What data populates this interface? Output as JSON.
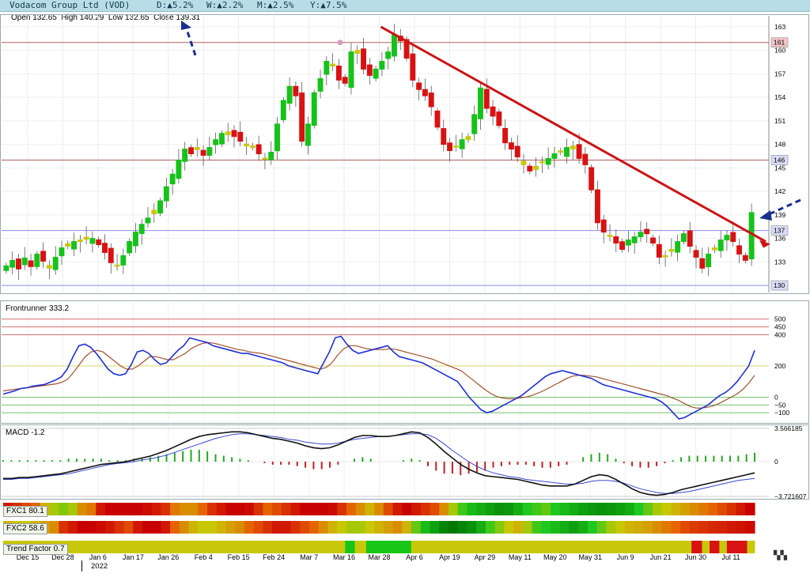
{
  "header": {
    "name": "Vodacom Group Ltd (VOD)",
    "day": "D:▲5.2%",
    "week": "W:▲2.2%",
    "month": "M:▲2.5%",
    "year": "Y:▲7.5%",
    "up_color": "#25a025"
  },
  "ohlc_text": "Open 132.65  High 140.29  Low 132.65  Close 139.31",
  "colors": {
    "up_candle": "#16c21a",
    "neutral_candle": "#c8c80a",
    "down_candle": "#d81212",
    "trendline": "#cc1414",
    "arrow": "#1a2f8e",
    "fast_line": "#1f2fd6",
    "slow_line": "#a0522d",
    "macd_line": "#111111",
    "signal_line": "#3848d0",
    "level_line": "#b06060",
    "level_line_blue": "#8c8ce6"
  },
  "chart_data": [
    {
      "type": "candlestick",
      "panel": "price",
      "ylim": [
        129,
        164
      ],
      "yticks": [
        130,
        133,
        136,
        139,
        142,
        145,
        148,
        151,
        154,
        157,
        160,
        163
      ],
      "xticks": [
        "Dec 15",
        "Dec 28",
        "Jan 6",
        "Jan 17",
        "Jan 26",
        "Feb 4",
        "Feb 15",
        "Feb 24",
        "Mar 7",
        "Mar 16",
        "Mar 28",
        "Apr 6",
        "Apr 19",
        "Apr 29",
        "May 11",
        "May 20",
        "May 31",
        "Jun 9",
        "Jun 21",
        "Jun 30",
        "Jul 11"
      ],
      "year_label": "2022",
      "reference_lines": [
        {
          "value": 161,
          "label": "161"
        },
        {
          "value": 146,
          "label": "146"
        },
        {
          "value": 137,
          "label": "137"
        },
        {
          "value": 130,
          "label": "130"
        }
      ],
      "close_series": [
        132.5,
        133.2,
        132.1,
        133.5,
        132.4,
        134.0,
        133.1,
        132.2,
        133.6,
        134.8,
        135.0,
        135.6,
        135.8,
        135.9,
        136.0,
        135.2,
        134.2,
        132.9,
        132.6,
        133.8,
        135.6,
        136.8,
        137.8,
        138.6,
        139.6,
        140.8,
        142.6,
        144.2,
        146.0,
        147.4,
        146.8,
        147.6,
        146.6,
        147.6,
        148.6,
        149.4,
        149.6,
        149.0,
        148.4,
        147.8,
        147.6,
        146.8,
        146.2,
        147.0,
        150.6,
        153.6,
        155.4,
        154.2,
        148.4,
        150.6,
        154.6,
        156.4,
        158.6,
        158.0,
        156.2,
        155.8,
        159.8,
        160.0,
        157.6,
        156.8,
        157.6,
        158.6,
        159.8,
        162.0,
        161.2,
        159.0,
        156.2,
        155.0,
        154.2,
        152.8,
        150.2,
        148.0,
        147.2,
        147.8,
        148.6,
        149.0,
        151.8,
        155.2,
        152.6,
        151.6,
        150.4,
        148.2,
        147.4,
        146.4,
        145.4,
        144.6,
        145.2,
        145.8,
        146.2,
        146.8,
        147.0,
        147.6,
        147.8,
        146.2,
        145.4,
        142.2,
        138.0,
        136.8,
        136.4,
        135.4,
        134.6,
        135.8,
        136.2,
        136.8,
        136.6,
        135.4,
        133.6,
        133.8,
        134.6,
        135.6,
        136.6,
        135.0,
        133.6,
        132.2,
        134.0,
        134.8,
        135.8,
        136.4,
        135.6,
        134.0,
        133.2,
        139.3
      ],
      "trendline": {
        "from": {
          "date": "Mar 28",
          "value": 163
        },
        "to": {
          "date": "Jul 11",
          "value": 135.6
        }
      },
      "arrow_marks": [
        "Open-High-Low-Close readout",
        "latest close"
      ]
    },
    {
      "type": "line",
      "panel": "oscillator",
      "title": "Frontrunner 333.2",
      "ylim": [
        -150,
        600
      ],
      "yticks": [
        500,
        450,
        400,
        200,
        0,
        -50,
        -100
      ],
      "tick_labels": [
        "500",
        "450",
        "400",
        "200",
        "0",
        "−50",
        "−100"
      ],
      "series": [
        {
          "values": [
            20,
            30,
            40,
            55,
            60,
            70,
            75,
            80,
            95,
            110,
            130,
            180,
            260,
            330,
            340,
            320,
            280,
            230,
            180,
            150,
            140,
            150,
            210,
            290,
            300,
            280,
            240,
            210,
            220,
            260,
            300,
            330,
            380,
            370,
            360,
            350,
            330,
            320,
            310,
            300,
            290,
            280,
            280,
            270,
            260,
            250,
            240,
            230,
            220,
            200,
            190,
            180,
            170,
            160,
            150,
            220,
            290,
            380,
            390,
            340,
            300,
            280,
            290,
            300,
            310,
            320,
            330,
            290,
            260,
            250,
            240,
            230,
            220,
            200,
            180,
            160,
            140,
            120,
            100,
            50,
            0,
            -40,
            -80,
            -100,
            -90,
            -70,
            -50,
            -30,
            -10,
            10,
            40,
            70,
            100,
            130,
            150,
            160,
            170,
            160,
            150,
            140,
            130,
            120,
            100,
            80,
            70,
            60,
            50,
            40,
            30,
            20,
            10,
            0,
            -10,
            -30,
            -60,
            -100,
            -140,
            -130,
            -110,
            -90,
            -70,
            -50,
            -20,
            10,
            30,
            60,
            100,
            150,
            200,
            300
          ]
        },
        {
          "values": [
            40,
            45,
            50,
            55,
            60,
            65,
            70,
            75,
            80,
            85,
            95,
            115,
            160,
            210,
            260,
            290,
            300,
            290,
            260,
            230,
            200,
            180,
            180,
            200,
            230,
            260,
            260,
            250,
            240,
            240,
            260,
            280,
            310,
            330,
            345,
            350,
            345,
            335,
            325,
            315,
            305,
            300,
            290,
            285,
            280,
            270,
            260,
            250,
            240,
            230,
            220,
            210,
            200,
            190,
            180,
            190,
            220,
            270,
            310,
            330,
            330,
            320,
            310,
            305,
            305,
            305,
            310,
            305,
            295,
            285,
            275,
            265,
            255,
            245,
            230,
            215,
            200,
            185,
            170,
            140,
            110,
            80,
            50,
            25,
            5,
            -5,
            -10,
            -10,
            -5,
            0,
            10,
            25,
            40,
            60,
            80,
            100,
            120,
            135,
            140,
            140,
            135,
            130,
            120,
            110,
            100,
            90,
            80,
            70,
            60,
            50,
            40,
            30,
            20,
            10,
            -5,
            -20,
            -40,
            -60,
            -70,
            -70,
            -65,
            -55,
            -40,
            -20,
            0,
            20,
            50,
            90,
            140
          ]
        }
      ]
    },
    {
      "type": "bar+line",
      "panel": "macd",
      "title": "MACD -1.2",
      "ylim": [
        -3.721607,
        3.566185
      ],
      "yticks": [
        3.566185,
        0,
        -3.721607
      ],
      "tick_labels": [
        "3.566185",
        "0",
        "−3.721607"
      ],
      "series": [
        {
          "values": [
            -1.8,
            -1.8,
            -1.7,
            -1.7,
            -1.6,
            -1.5,
            -1.4,
            -1.3,
            -1.1,
            -0.9,
            -0.7,
            -0.5,
            -0.3,
            -0.2,
            -0.1,
            0.0,
            0.2,
            0.4,
            0.6,
            0.9,
            1.2,
            1.6,
            2.0,
            2.4,
            2.7,
            2.9,
            3.0,
            3.1,
            3.2,
            3.2,
            3.1,
            2.9,
            2.7,
            2.5,
            2.4,
            2.2,
            2.0,
            1.7,
            1.5,
            1.4,
            1.5,
            1.8,
            2.2,
            2.6,
            2.8,
            2.8,
            2.7,
            2.7,
            2.8,
            3.0,
            3.2,
            3.1,
            2.6,
            1.9,
            1.1,
            0.4,
            -0.3,
            -0.8,
            -1.2,
            -1.5,
            -1.6,
            -1.7,
            -1.8,
            -1.9,
            -2.1,
            -2.3,
            -2.5,
            -2.6,
            -2.6,
            -2.6,
            -2.4,
            -2.0,
            -1.6,
            -1.4,
            -1.5,
            -1.9,
            -2.4,
            -2.9,
            -3.3,
            -3.5,
            -3.6,
            -3.5,
            -3.3,
            -3.0,
            -2.8,
            -2.6,
            -2.4,
            -2.2,
            -2.0,
            -1.8,
            -1.6,
            -1.4,
            -1.2
          ]
        },
        {
          "values": [
            -1.9,
            -1.9,
            -1.8,
            -1.8,
            -1.7,
            -1.6,
            -1.5,
            -1.4,
            -1.3,
            -1.1,
            -0.9,
            -0.7,
            -0.5,
            -0.3,
            -0.2,
            -0.1,
            0.0,
            0.2,
            0.3,
            0.5,
            0.7,
            1.0,
            1.3,
            1.6,
            1.9,
            2.2,
            2.5,
            2.7,
            2.9,
            3.0,
            3.0,
            2.9,
            2.8,
            2.7,
            2.6,
            2.4,
            2.3,
            2.1,
            2.0,
            1.9,
            1.9,
            2.0,
            2.2,
            2.4,
            2.5,
            2.6,
            2.7,
            2.7,
            2.8,
            2.9,
            3.0,
            3.0,
            2.9,
            2.5,
            1.9,
            1.2,
            0.6,
            0.0,
            -0.5,
            -0.9,
            -1.2,
            -1.4,
            -1.6,
            -1.7,
            -1.9,
            -2.0,
            -2.1,
            -2.2,
            -2.3,
            -2.4,
            -2.4,
            -2.3,
            -2.1,
            -2.0,
            -2.0,
            -2.1,
            -2.3,
            -2.6,
            -2.9,
            -3.1,
            -3.3,
            -3.4,
            -3.4,
            -3.3,
            -3.2,
            -3.0,
            -2.8,
            -2.6,
            -2.4,
            -2.2,
            -2.0,
            -1.9,
            -1.8
          ]
        }
      ]
    },
    {
      "type": "heatmap",
      "panel": "FXC1",
      "title": "FXC1 80.1",
      "values": [
        0.95,
        0.9,
        0.85,
        0.8,
        0.6,
        0.5,
        0.45,
        0.5,
        0.7,
        0.75,
        0.95,
        1.0,
        1.0,
        1.0,
        1.0,
        0.98,
        0.95,
        0.9,
        0.75,
        0.7,
        0.7,
        0.8,
        0.9,
        0.95,
        1.0,
        1.0,
        0.98,
        0.9,
        0.8,
        0.85,
        0.9,
        0.95,
        1.0,
        1.0,
        1.0,
        0.98,
        0.9,
        0.8,
        0.7,
        0.6,
        0.7,
        0.85,
        0.95,
        1.0,
        0.95,
        0.9,
        0.85,
        0.7,
        0.5,
        0.35,
        0.25,
        0.2,
        0.15,
        0.1,
        0.12,
        0.2,
        0.3,
        0.35,
        0.4,
        0.3,
        0.25,
        0.2,
        0.15,
        0.12,
        0.1,
        0.12,
        0.15,
        0.2,
        0.3,
        0.4,
        0.5,
        0.55,
        0.6,
        0.65,
        0.7,
        0.75,
        0.8,
        0.85,
        0.9,
        0.95,
        1.0
      ]
    },
    {
      "type": "heatmap",
      "panel": "FXC2",
      "title": "FXC2 58.6",
      "values": [
        0.6,
        0.55,
        0.55,
        0.6,
        0.65,
        0.7,
        0.9,
        0.95,
        1.0,
        1.0,
        0.98,
        0.95,
        0.9,
        0.85,
        0.95,
        1.0,
        1.0,
        0.95,
        0.8,
        0.7,
        0.6,
        0.55,
        0.55,
        0.6,
        0.65,
        0.7,
        0.8,
        0.85,
        0.9,
        0.95,
        0.95,
        0.9,
        0.85,
        0.8,
        0.7,
        0.6,
        0.55,
        0.5,
        0.5,
        0.55,
        0.6,
        0.65,
        0.7,
        0.6,
        0.4,
        0.25,
        0.15,
        0.05,
        0.0,
        0.05,
        0.1,
        0.2,
        0.35,
        0.45,
        0.55,
        0.6,
        0.5,
        0.35,
        0.3,
        0.25,
        0.2,
        0.15,
        0.2,
        0.3,
        0.4,
        0.5,
        0.55,
        0.6,
        0.62,
        0.65,
        0.7,
        0.75,
        0.8,
        0.85,
        0.88,
        0.9,
        0.92,
        0.93,
        0.95,
        0.96,
        0.98
      ]
    },
    {
      "type": "heatmap",
      "panel": "Trend Factor",
      "title": "Trend Factor 0.7",
      "segments": [
        {
          "from": 0.0,
          "to": 0.455,
          "state": "neutral"
        },
        {
          "from": 0.455,
          "to": 0.468,
          "state": "up"
        },
        {
          "from": 0.468,
          "to": 0.483,
          "state": "neutral"
        },
        {
          "from": 0.483,
          "to": 0.543,
          "state": "up"
        },
        {
          "from": 0.543,
          "to": 0.916,
          "state": "neutral"
        },
        {
          "from": 0.916,
          "to": 0.93,
          "state": "down"
        },
        {
          "from": 0.93,
          "to": 0.94,
          "state": "neutral"
        },
        {
          "from": 0.94,
          "to": 0.953,
          "state": "down"
        },
        {
          "from": 0.953,
          "to": 0.963,
          "state": "neutral"
        },
        {
          "from": 0.963,
          "to": 0.99,
          "state": "down"
        },
        {
          "from": 0.99,
          "to": 1.0,
          "state": "neutral"
        }
      ]
    }
  ]
}
